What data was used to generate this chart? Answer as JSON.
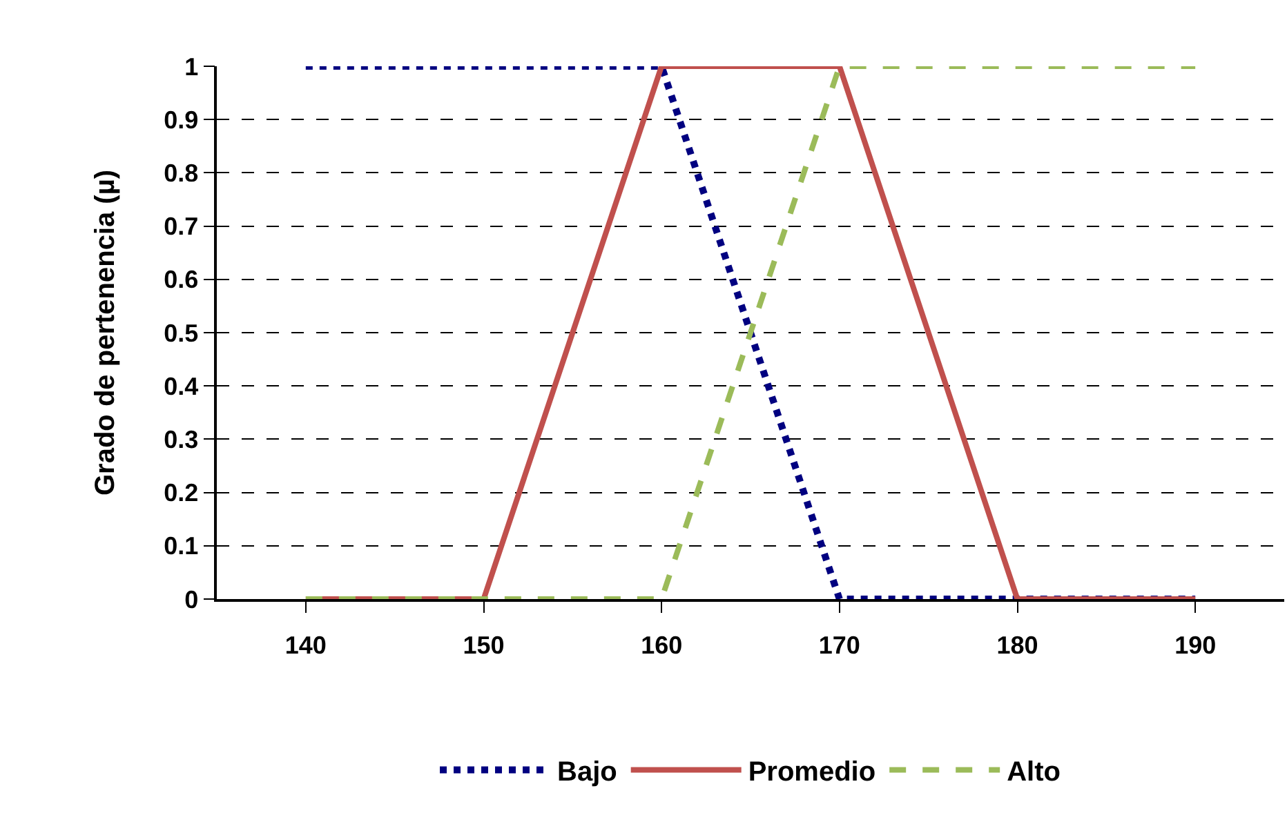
{
  "chart_data": {
    "type": "line",
    "ylabel": "Grado de pertenencia (µ)",
    "xlim": [
      135,
      195
    ],
    "xticks": [
      140,
      150,
      160,
      170,
      180,
      190
    ],
    "ylim": [
      0,
      1
    ],
    "yticks": [
      0,
      0.1,
      0.2,
      0.3,
      0.4,
      0.5,
      0.6,
      0.7,
      0.8,
      0.9,
      1
    ],
    "grid": "y",
    "legend": "bottom",
    "marker": "none",
    "series": [
      {
        "name": "Bajo",
        "color": "#000080",
        "line_style": "dotted",
        "x": [
          140,
          160,
          170,
          190
        ],
        "values": [
          1,
          1,
          0,
          0
        ]
      },
      {
        "name": "Promedio",
        "color": "#c0504d",
        "line_style": "solid",
        "x": [
          140,
          150,
          160,
          170,
          180,
          190
        ],
        "values": [
          0,
          0,
          1,
          1,
          0,
          0
        ]
      },
      {
        "name": "Alto",
        "color": "#9bbb59",
        "line_style": "dashed",
        "x": [
          140,
          160,
          170,
          190
        ],
        "values": [
          0,
          0,
          1,
          1
        ]
      }
    ]
  }
}
